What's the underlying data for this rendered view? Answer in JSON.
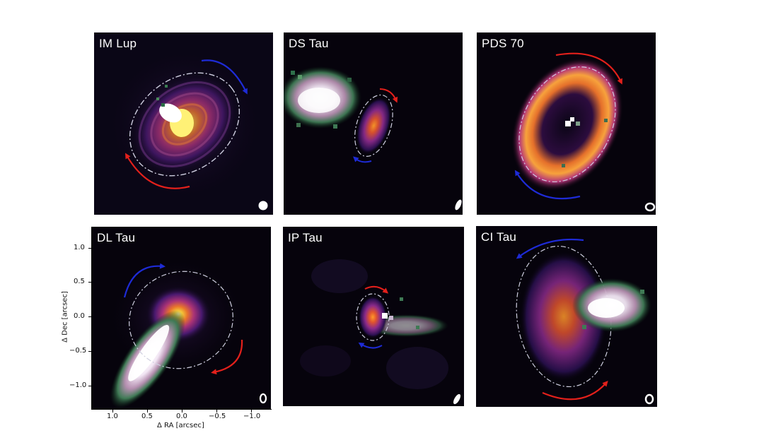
{
  "panels": {
    "im_lup": {
      "name": "IM Lup"
    },
    "ds_tau": {
      "name": "DS Tau"
    },
    "pds_70": {
      "name": "PDS 70"
    },
    "dl_tau": {
      "name": "DL Tau"
    },
    "ip_tau": {
      "name": "IP Tau"
    },
    "ci_tau": {
      "name": "CI Tau"
    }
  },
  "axes": {
    "xlabel": "Δ RA [arcsec]",
    "ylabel": "Δ Dec [arcsec]",
    "yticks": [
      "1.0",
      "0.5",
      "0.0",
      "−0.5",
      "−1.0"
    ],
    "xticks": [
      "1.0",
      "0.5",
      "0.0",
      "−0.5",
      "−1.0"
    ]
  },
  "colors": {
    "redshift_arrow": "#e3201b",
    "blueshift_arrow": "#1e2bd6",
    "ellipse": "#cfcfe0",
    "background": "#06030c"
  }
}
